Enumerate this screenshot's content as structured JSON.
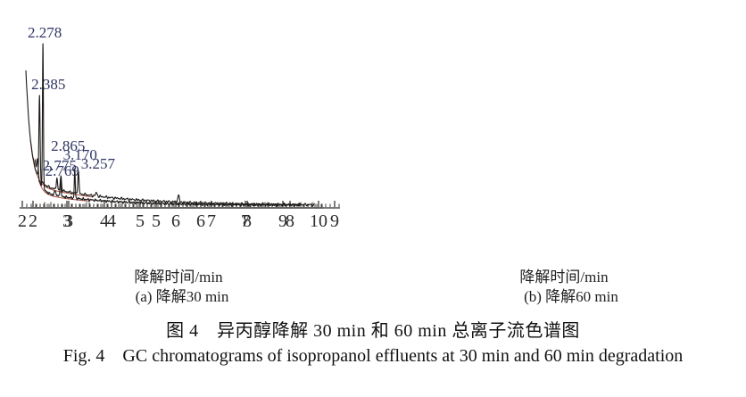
{
  "figure": {
    "caption_cn": "图 4　异丙醇降解 30 min 和 60 min 总离子流色谱图",
    "caption_en": "Fig. 4　GC chromatograms of isopropanol effluents at 30 min and 60 min degradation"
  },
  "colors": {
    "trace": "#1c1917",
    "baseline_red": "#9e4433",
    "peak_label": "#2e3462",
    "axis": "#2a2624",
    "axis_text": "#2b2b2b"
  },
  "chart_data": [
    {
      "type": "line",
      "panel_id": "a",
      "xlabel": "降解时间/min",
      "panel_caption": "(a) 降解30 min",
      "xlim": [
        2,
        9
      ],
      "x_ticks": [
        2,
        3,
        4,
        5,
        6,
        7,
        8,
        9
      ],
      "x_unit": "min",
      "grid": false,
      "y_axis_shown": false,
      "trace": {
        "start": 2.08,
        "end": 8.55,
        "base_offset": 3,
        "decays": [
          {
            "amp": 126,
            "tau": 0.11
          },
          {
            "amp": 26,
            "tau": 1.7
          }
        ]
      },
      "peaks": [
        {
          "rt": 2.385,
          "label": "2.385",
          "apex": 126,
          "label_dx": 10,
          "label_dy": -7
        },
        {
          "rt": 2.775,
          "label": "2.775",
          "apex": 34,
          "label_dx": 3,
          "label_dy": -8
        },
        {
          "rt": 2.865,
          "label": "2.865",
          "apex": 36,
          "label_dx": 8,
          "label_dy": -28
        },
        {
          "rt": 3.257,
          "label": "3.257",
          "apex": 41,
          "label_dx": 22,
          "label_dy": -3
        },
        {
          "rt": 3.66,
          "label": "",
          "apex": 17
        },
        {
          "rt": 5.5,
          "label": "",
          "apex": 14
        }
      ]
    },
    {
      "type": "line",
      "panel_id": "b",
      "xlabel": "降解时间/min",
      "panel_caption": "(b) 降解60 min",
      "xlim": [
        2,
        10
      ],
      "x_ticks": [
        2,
        3,
        4,
        5,
        6,
        7,
        8,
        9,
        10
      ],
      "x_unit": "min",
      "grid": false,
      "y_axis_shown": false,
      "trace": {
        "start": 2.06,
        "end": 9.5,
        "base_offset": 3,
        "decays": [
          {
            "amp": 36,
            "tau": 0.12
          },
          {
            "amp": 15,
            "tau": 1.7
          }
        ]
      },
      "peaks": [
        {
          "rt": 2.13,
          "label": "",
          "apex": 54
        },
        {
          "rt": 2.278,
          "label": "2.278",
          "apex": 185,
          "label_dx": 2,
          "label_dy": -6
        },
        {
          "rt": 2.62,
          "label": "",
          "apex": 20
        },
        {
          "rt": 2.769,
          "label": "2.769",
          "apex": 33,
          "label_dx": 2,
          "label_dy": -3
        },
        {
          "rt": 3.17,
          "label": "3.170",
          "apex": 43,
          "label_dx": 6,
          "label_dy": -11
        }
      ]
    }
  ]
}
